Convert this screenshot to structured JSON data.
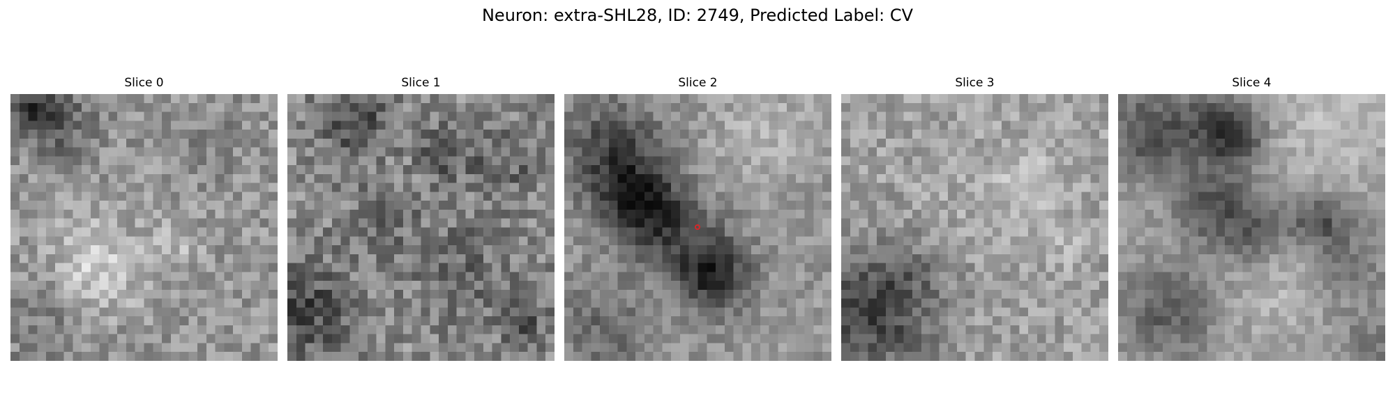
{
  "figure": {
    "title": "Neuron: extra-SHL28, ID: 2749, Predicted Label: CV"
  },
  "slices": [
    {
      "label": "Slice 0"
    },
    {
      "label": "Slice 1"
    },
    {
      "label": "Slice 2",
      "marker_color": "#d62728"
    },
    {
      "label": "Slice 3"
    },
    {
      "label": "Slice 4"
    }
  ],
  "colormap": "gray"
}
